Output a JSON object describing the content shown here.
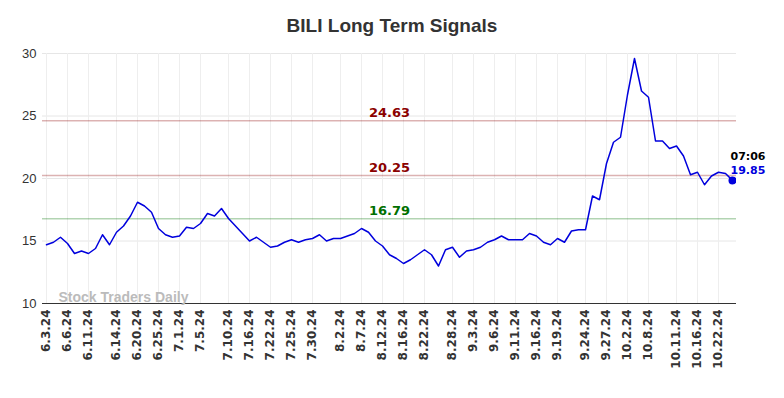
{
  "chart_data": {
    "type": "line",
    "title": "BILI Long Term Signals",
    "watermark": "Stock Traders Daily",
    "end_label": "07:06",
    "color": "#0000dd",
    "grid": true,
    "ylim": [
      10,
      30
    ],
    "yticks": [
      10,
      15,
      20,
      25,
      30
    ],
    "levels": [
      {
        "value": 24.63,
        "color": "#8b0000"
      },
      {
        "value": 20.25,
        "color": "#8b0000"
      },
      {
        "value": 16.79,
        "color": "#007000"
      }
    ],
    "categories": [
      "6.3.24",
      null,
      null,
      "6.6.24",
      null,
      null,
      "6.11.24",
      null,
      null,
      null,
      "6.14.24",
      null,
      null,
      "6.20.24",
      null,
      null,
      "6.25.24",
      null,
      null,
      "7.1.24",
      null,
      null,
      "7.5.24",
      null,
      null,
      null,
      "7.10.24",
      null,
      null,
      "7.16.24",
      null,
      null,
      "7.22.24",
      null,
      null,
      "7.25.24",
      null,
      null,
      "7.30.24",
      null,
      null,
      null,
      "8.2.24",
      null,
      null,
      "8.7.24",
      null,
      null,
      "8.12.24",
      null,
      null,
      "8.16.24",
      null,
      null,
      "8.22.24",
      null,
      null,
      null,
      "8.28.24",
      null,
      null,
      "9.3.24",
      null,
      null,
      "9.6.24",
      null,
      null,
      "9.11.24",
      null,
      null,
      "9.16.24",
      null,
      null,
      "9.19.24",
      null,
      null,
      null,
      "9.24.24",
      null,
      null,
      "9.27.24",
      null,
      null,
      "10.2.24",
      null,
      null,
      "10.8.24",
      null,
      null,
      null,
      "10.11.24",
      null,
      null,
      "10.16.24",
      null,
      null,
      "10.22.24",
      null,
      null
    ],
    "values": [
      14.7,
      14.9,
      15.3,
      14.8,
      14.0,
      14.2,
      14.0,
      14.4,
      15.5,
      14.7,
      15.7,
      16.2,
      17.0,
      18.1,
      17.8,
      17.3,
      16.0,
      15.5,
      15.3,
      15.4,
      16.1,
      16.0,
      16.4,
      17.2,
      17.0,
      17.6,
      16.8,
      16.2,
      15.6,
      15.0,
      15.3,
      14.9,
      14.5,
      14.6,
      14.9,
      15.1,
      14.9,
      15.1,
      15.2,
      15.5,
      15.0,
      15.2,
      15.2,
      15.4,
      15.6,
      16.0,
      15.7,
      15.0,
      14.6,
      13.9,
      13.6,
      13.2,
      13.5,
      13.9,
      14.3,
      13.9,
      13.0,
      14.3,
      14.5,
      13.7,
      14.2,
      14.3,
      14.5,
      14.9,
      15.1,
      15.4,
      15.1,
      15.1,
      15.1,
      15.6,
      15.4,
      14.9,
      14.7,
      15.2,
      14.9,
      15.8,
      15.9,
      15.9,
      18.6,
      18.3,
      21.2,
      22.9,
      23.3,
      26.7,
      29.6,
      27.0,
      26.5,
      23.0,
      23.0,
      22.4,
      22.6,
      21.8,
      20.3,
      20.5,
      19.5,
      20.2,
      20.5,
      20.4,
      19.85
    ]
  }
}
